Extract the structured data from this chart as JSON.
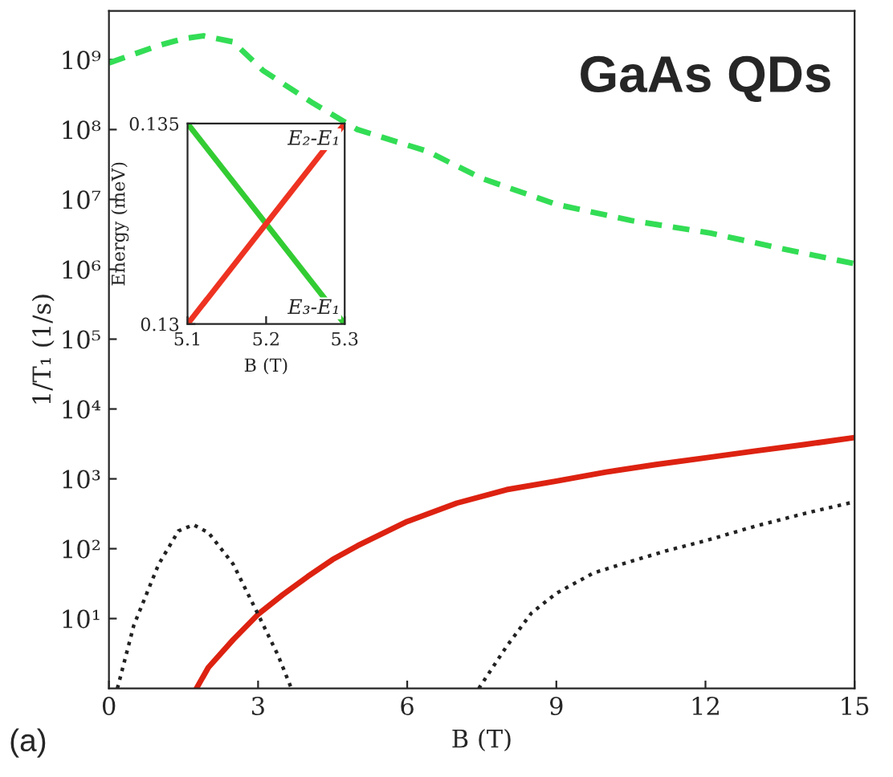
{
  "chart_data": [
    {
      "type": "line",
      "xlabel": "B (T)",
      "ylabel": "1/T₁ (1/s)",
      "log": "y",
      "annotations": [
        "GaAs QDs",
        "(a)"
      ],
      "xlim": [
        0,
        15
      ],
      "xticks": [
        0,
        3,
        6,
        9,
        12,
        15
      ],
      "ylim": [
        1,
        5000000000
      ],
      "yticks": [
        {
          "value": 10,
          "label": "10¹"
        },
        {
          "value": 100,
          "label": "10²"
        },
        {
          "value": 1000,
          "label": "10³"
        },
        {
          "value": 10000,
          "label": "10⁴"
        },
        {
          "value": 100000,
          "label": "10⁵"
        },
        {
          "value": 1000000,
          "label": "10⁶"
        },
        {
          "value": 10000000,
          "label": "10⁷"
        },
        {
          "value": 100000000,
          "label": "10⁸"
        },
        {
          "value": 1000000000,
          "label": "10⁹"
        }
      ],
      "grid": false,
      "legend": false,
      "series": [
        {
          "color": "#33dd55",
          "line_style": "dashed",
          "x": [
            0,
            0.5,
            1,
            1.5,
            1.9,
            2.5,
            3.1,
            4.1,
            5,
            6.4,
            7.5,
            9,
            10.5,
            12.1,
            13.5,
            15
          ],
          "values": [
            900000000,
            1200000000,
            1600000000,
            2000000000,
            2200000000,
            1800000000,
            700000000,
            240000000,
            100000000,
            49000000,
            20000000,
            8500000,
            5000000,
            3300000,
            2000000,
            1200000
          ]
        },
        {
          "color": "#dd2211",
          "line_style": "solid",
          "x": [
            1.76,
            2,
            2.5,
            3,
            3.5,
            4,
            4.5,
            5,
            6,
            7,
            8,
            9,
            10,
            11,
            12,
            13,
            14,
            15
          ],
          "values": [
            1,
            2,
            5,
            11.5,
            22,
            40,
            70,
            110,
            245,
            450,
            700,
            930,
            1250,
            1600,
            2000,
            2500,
            3100,
            3900
          ]
        },
        {
          "color": "#222222",
          "line_style": "dotted",
          "x": [
            0.17,
            0.5,
            1,
            1.4,
            1.7,
            2,
            2.5,
            3,
            3.4,
            3.67
          ],
          "values": [
            1,
            8,
            60,
            180,
            220,
            170,
            60,
            11.5,
            3,
            1
          ]
        },
        {
          "color": "#222222",
          "line_style": "dotted",
          "x": [
            7.44,
            8,
            8.5,
            9,
            9.75,
            10.5,
            11.25,
            12,
            13,
            14,
            15
          ],
          "values": [
            1,
            4,
            12,
            23,
            45,
            66,
            95,
            130,
            210,
            320,
            470
          ]
        }
      ]
    },
    {
      "type": "line",
      "xlabel": "B (T)",
      "ylabel": "Energy (meV)",
      "xlim": [
        5.1,
        5.3
      ],
      "xticks": [
        5.1,
        5.2,
        5.3
      ],
      "ylim": [
        0.13,
        0.135
      ],
      "yticks": [
        0.13,
        0.135
      ],
      "grid": false,
      "legend": false,
      "annotations": [
        "E₂-E₁",
        "E₃-E₁"
      ],
      "series": [
        {
          "color": "#33cc33",
          "line_style": "solid",
          "x": [
            5.1,
            5.3
          ],
          "values": [
            0.135,
            0.13
          ]
        },
        {
          "color": "#ee3322",
          "line_style": "solid",
          "x": [
            5.1,
            5.3
          ],
          "values": [
            0.13,
            0.135
          ]
        }
      ]
    }
  ]
}
